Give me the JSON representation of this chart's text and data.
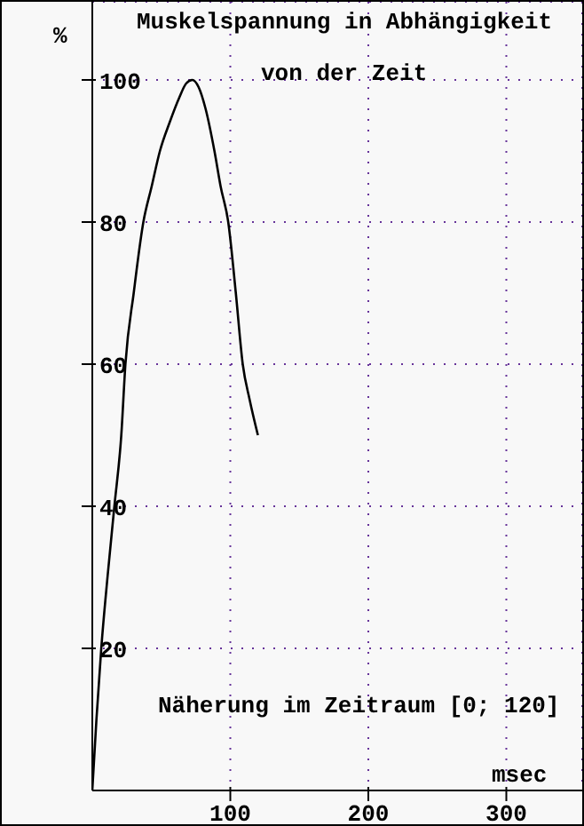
{
  "chart_data": {
    "type": "line",
    "title": "Muskelspannung in Abhängigkeit",
    "subtitle": "von der Zeit",
    "xlabel": "msec",
    "ylabel": "%",
    "annotations": [
      "Näherung im Zeitraum [0; 120]"
    ],
    "series": [
      {
        "color": "#000000",
        "x": [
          0,
          3,
          6.5,
          11,
          16,
          21,
          24,
          30,
          37,
          43,
          49,
          56,
          63,
          68,
          72.5,
          77,
          82,
          88.5,
          93,
          98.5,
          104,
          109,
          114,
          120
        ],
        "values": [
          0,
          10,
          20,
          30,
          40,
          50,
          60,
          70,
          80,
          85,
          90,
          94,
          97.5,
          99.5,
          100,
          99,
          96,
          90,
          85,
          80,
          70,
          60,
          55,
          50
        ]
      }
    ],
    "xlim": [
      0,
      355
    ],
    "xticks": [
      100,
      200,
      300
    ],
    "ylim": [
      0,
      111
    ],
    "yticks": [
      20,
      40,
      60,
      80,
      100
    ],
    "grid": true,
    "marker": "none",
    "line_style": "solid"
  }
}
